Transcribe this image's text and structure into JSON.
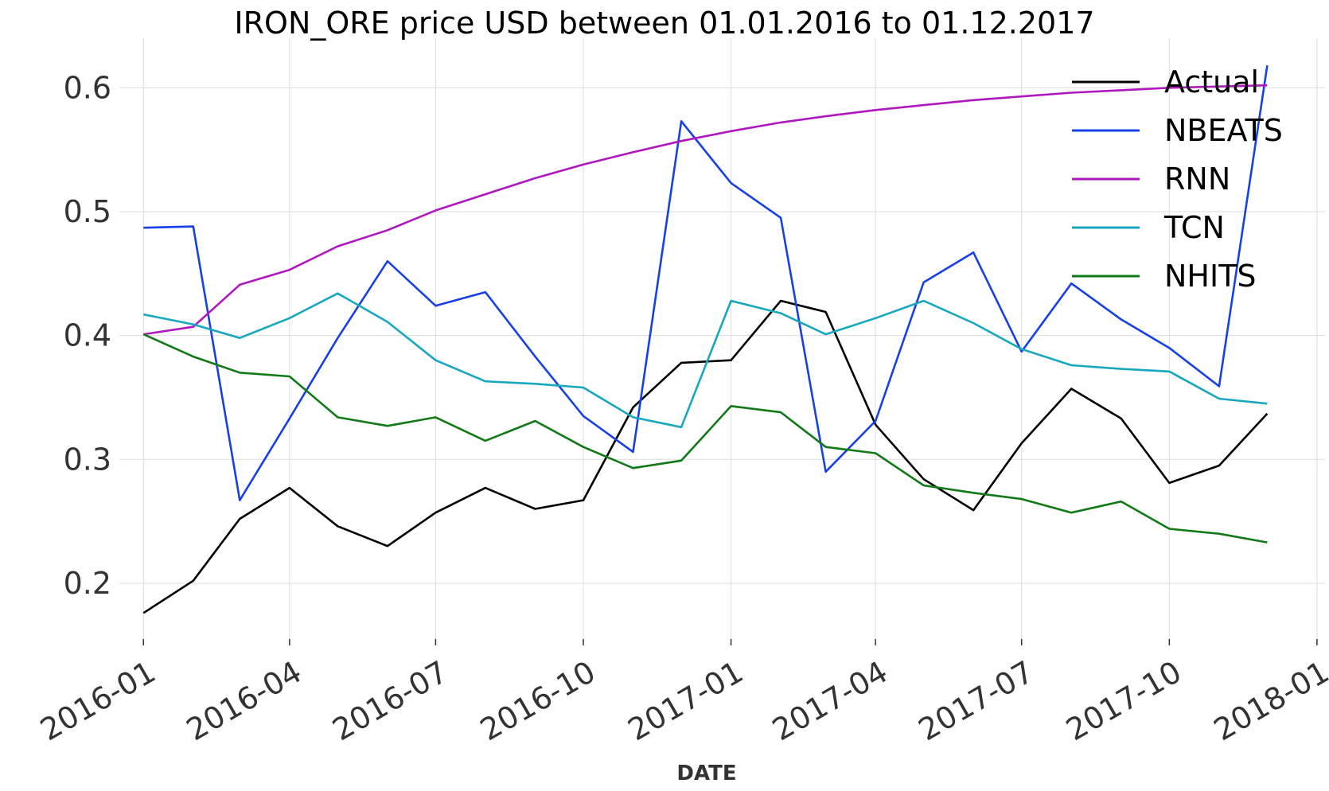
{
  "chart_data": {
    "type": "line",
    "title": "IRON_ORE price USD between 01.01.2016 to 01.12.2017",
    "xlabel": "DATE",
    "ylabel": "",
    "x": [
      "2016-01-01",
      "2016-02-01",
      "2016-03-01",
      "2016-04-01",
      "2016-05-01",
      "2016-06-01",
      "2016-07-01",
      "2016-08-01",
      "2016-09-01",
      "2016-10-01",
      "2016-11-01",
      "2016-12-01",
      "2017-01-01",
      "2017-02-01",
      "2017-03-01",
      "2017-04-01",
      "2017-05-01",
      "2017-06-01",
      "2017-07-01",
      "2017-08-01",
      "2017-09-01",
      "2017-10-01",
      "2017-11-01",
      "2017-12-01"
    ],
    "xlim": [
      "2015-12-17",
      "2018-01-06"
    ],
    "ylim": [
      0.155,
      0.64
    ],
    "yticks": [
      0.2,
      0.3,
      0.4,
      0.5,
      0.6
    ],
    "ytick_labels": [
      "0.2",
      "0.3",
      "0.4",
      "0.5",
      "0.6"
    ],
    "xticks": [
      "2016-01-01",
      "2016-04-01",
      "2016-07-01",
      "2016-10-01",
      "2017-01-01",
      "2017-04-01",
      "2017-07-01",
      "2017-10-01",
      "2018-01-01"
    ],
    "xtick_labels": [
      "2016-01",
      "2016-04",
      "2016-07",
      "2016-10",
      "2017-01",
      "2017-04",
      "2017-07",
      "2017-10",
      "2018-01"
    ],
    "grid": true,
    "legend_position": "top-right",
    "series": [
      {
        "name": "Actual",
        "color": "#000000",
        "values": [
          0.176,
          0.202,
          0.252,
          0.277,
          0.246,
          0.23,
          0.257,
          0.277,
          0.26,
          0.267,
          0.342,
          0.378,
          0.38,
          0.428,
          0.419,
          0.328,
          0.284,
          0.259,
          0.313,
          0.357,
          0.333,
          0.281,
          0.295,
          0.337
        ]
      },
      {
        "name": "NBEATS",
        "color": "#1740ea",
        "values": [
          0.487,
          0.488,
          0.267,
          0.333,
          0.398,
          0.46,
          0.424,
          0.435,
          0.383,
          0.335,
          0.306,
          0.573,
          0.523,
          0.495,
          0.29,
          0.331,
          0.443,
          0.467,
          0.387,
          0.442,
          0.413,
          0.39,
          0.359,
          0.618
        ]
      },
      {
        "name": "RNN",
        "color": "#b117bf",
        "values": [
          0.401,
          0.407,
          0.441,
          0.453,
          0.472,
          0.485,
          0.501,
          0.514,
          0.527,
          0.538,
          0.548,
          0.557,
          0.565,
          0.572,
          0.577,
          0.582,
          0.586,
          0.59,
          0.593,
          0.596,
          0.598,
          0.6,
          0.601,
          0.602
        ]
      },
      {
        "name": "TCN",
        "color": "#17a8bf",
        "values": [
          0.417,
          0.409,
          0.398,
          0.414,
          0.434,
          0.411,
          0.38,
          0.363,
          0.361,
          0.358,
          0.334,
          0.326,
          0.428,
          0.418,
          0.401,
          0.414,
          0.428,
          0.41,
          0.389,
          0.376,
          0.373,
          0.371,
          0.349,
          0.345
        ]
      },
      {
        "name": "NHITS",
        "color": "#117a17",
        "values": [
          0.401,
          0.383,
          0.37,
          0.367,
          0.334,
          0.327,
          0.334,
          0.315,
          0.331,
          0.31,
          0.293,
          0.299,
          0.343,
          0.338,
          0.31,
          0.305,
          0.279,
          0.273,
          0.268,
          0.257,
          0.266,
          0.244,
          0.24,
          0.233
        ]
      }
    ]
  }
}
